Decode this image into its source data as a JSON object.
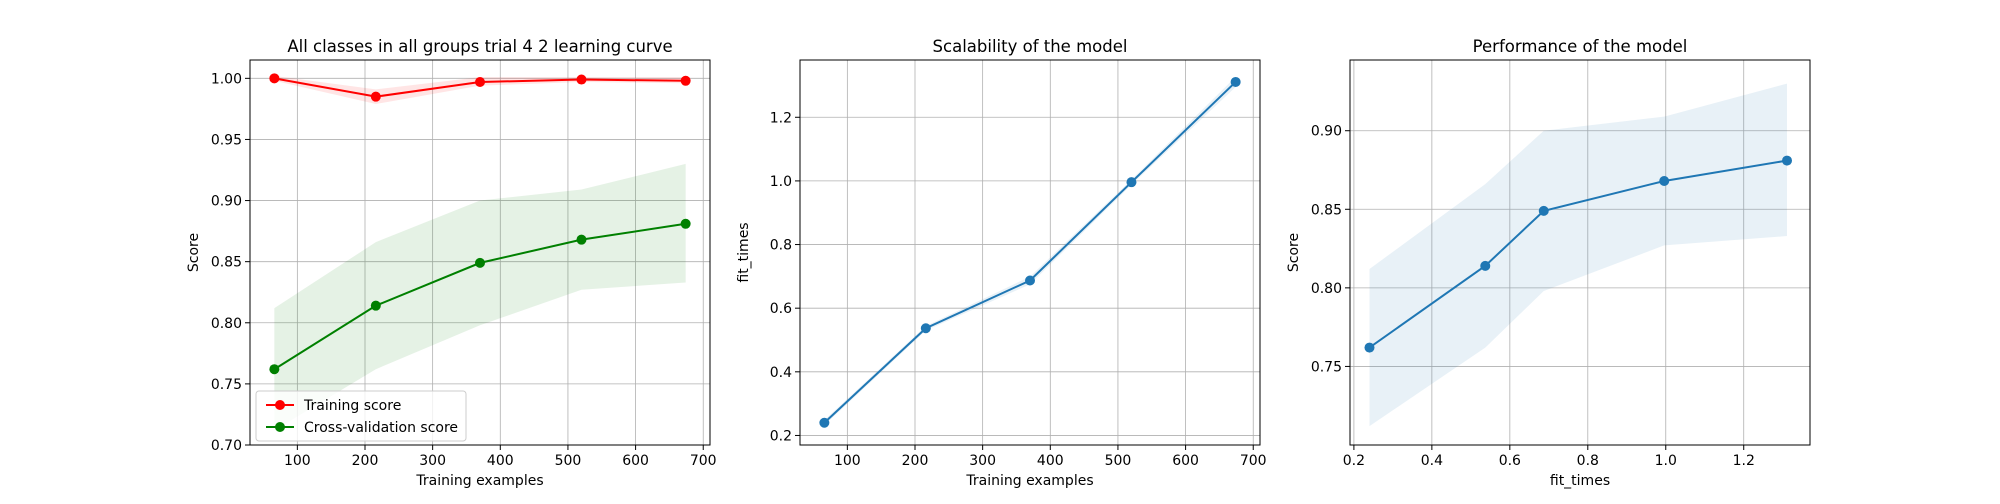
{
  "chart_data": [
    {
      "type": "line",
      "title": "All classes in all groups trial 4 2 learning curve",
      "xlabel": "Training examples",
      "ylabel": "Score",
      "xlim": [
        30,
        710
      ],
      "ylim": [
        0.7,
        1.015
      ],
      "xticks": [
        100,
        200,
        300,
        400,
        500,
        600,
        700
      ],
      "xtick_labels": [
        "100",
        "200",
        "300",
        "400",
        "500",
        "600",
        "700"
      ],
      "yticks": [
        0.7,
        0.75,
        0.8,
        0.85,
        0.9,
        0.95,
        1.0
      ],
      "ytick_labels": [
        "0.70",
        "0.75",
        "0.80",
        "0.85",
        "0.90",
        "0.95",
        "1.00"
      ],
      "grid": true,
      "legend_position": "lower-left",
      "x": [
        66,
        216,
        370,
        520,
        674
      ],
      "series": [
        {
          "name": "Training score",
          "color": "#ff0000",
          "values": [
            1.0,
            0.985,
            0.997,
            0.999,
            0.998
          ],
          "band_lower": [
            0.998,
            0.979,
            0.994,
            0.997,
            0.996
          ],
          "band_upper": [
            1.002,
            0.991,
            1.001,
            1.001,
            1.001
          ]
        },
        {
          "name": "Cross-validation score",
          "color": "#008000",
          "values": [
            0.762,
            0.814,
            0.849,
            0.868,
            0.881
          ],
          "band_lower": [
            0.712,
            0.762,
            0.798,
            0.827,
            0.833
          ],
          "band_upper": [
            0.812,
            0.866,
            0.9,
            0.909,
            0.93
          ]
        }
      ]
    },
    {
      "type": "line",
      "title": "Scalability of the model",
      "xlabel": "Training examples",
      "ylabel": "fit_times",
      "xlim": [
        30,
        710
      ],
      "ylim": [
        0.17,
        1.38
      ],
      "xticks": [
        100,
        200,
        300,
        400,
        500,
        600,
        700
      ],
      "xtick_labels": [
        "100",
        "200",
        "300",
        "400",
        "500",
        "600",
        "700"
      ],
      "yticks": [
        0.2,
        0.4,
        0.6,
        0.8,
        1.0,
        1.2
      ],
      "ytick_labels": [
        "0.2",
        "0.4",
        "0.6",
        "0.8",
        "1.0",
        "1.2"
      ],
      "grid": true,
      "x": [
        66,
        216,
        370,
        520,
        674
      ],
      "series": [
        {
          "color": "#1f77b4",
          "values": [
            0.24,
            0.537,
            0.687,
            0.996,
            1.311
          ],
          "band_lower": [
            0.232,
            0.53,
            0.675,
            0.988,
            1.295
          ],
          "band_upper": [
            0.248,
            0.544,
            0.699,
            1.004,
            1.327
          ]
        }
      ]
    },
    {
      "type": "line",
      "title": "Performance of the model",
      "xlabel": "fit_times",
      "ylabel": "Score",
      "xlim": [
        0.19,
        1.37
      ],
      "ylim": [
        0.7,
        0.945
      ],
      "xticks": [
        0.2,
        0.4,
        0.6,
        0.8,
        1.0,
        1.2
      ],
      "xtick_labels": [
        "0.2",
        "0.4",
        "0.6",
        "0.8",
        "1.0",
        "1.2"
      ],
      "yticks": [
        0.75,
        0.8,
        0.85,
        0.9
      ],
      "ytick_labels": [
        "0.75",
        "0.80",
        "0.85",
        "0.90"
      ],
      "grid": true,
      "x": [
        0.24,
        0.537,
        0.687,
        0.996,
        1.311
      ],
      "series": [
        {
          "color": "#1f77b4",
          "values": [
            0.762,
            0.814,
            0.849,
            0.868,
            0.881
          ],
          "band_lower": [
            0.712,
            0.762,
            0.798,
            0.827,
            0.833
          ],
          "band_upper": [
            0.812,
            0.866,
            0.9,
            0.909,
            0.93
          ]
        }
      ]
    }
  ]
}
